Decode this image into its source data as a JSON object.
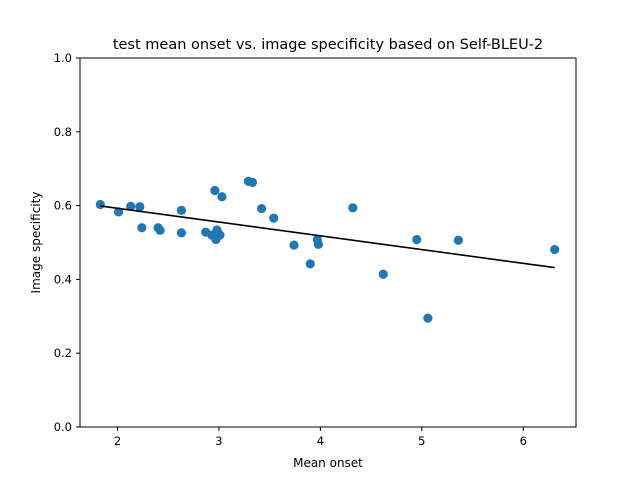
{
  "chart_data": {
    "type": "scatter",
    "title": "test mean onset vs. image specificity based on Self-BLEU-2",
    "xlabel": "Mean onset",
    "ylabel": "Image specificity",
    "xlim": [
      1.63,
      6.52
    ],
    "ylim": [
      0.0,
      1.0
    ],
    "xticks": [
      2,
      3,
      4,
      5,
      6
    ],
    "xtick_labels": [
      "2",
      "3",
      "4",
      "5",
      "6"
    ],
    "yticks": [
      0.0,
      0.2,
      0.4,
      0.6,
      0.8,
      1.0
    ],
    "ytick_labels": [
      "0.0",
      "0.2",
      "0.4",
      "0.6",
      "0.8",
      "1.0"
    ],
    "grid": false,
    "point_color": "#1f77b4",
    "fit_color": "#000000",
    "series": [
      {
        "type": "scatter",
        "x": [
          1.83,
          2.01,
          2.13,
          2.22,
          2.24,
          2.4,
          2.42,
          2.63,
          2.63,
          2.87,
          2.93,
          2.96,
          2.97,
          2.98,
          2.99,
          3.01,
          3.03,
          3.29,
          3.33,
          3.42,
          3.54,
          3.74,
          3.9,
          3.97,
          3.98,
          4.32,
          4.62,
          4.95,
          5.06,
          5.36,
          6.31
        ],
        "y": [
          0.603,
          0.583,
          0.598,
          0.597,
          0.54,
          0.54,
          0.533,
          0.587,
          0.526,
          0.528,
          0.52,
          0.641,
          0.508,
          0.534,
          0.527,
          0.52,
          0.624,
          0.666,
          0.663,
          0.592,
          0.566,
          0.493,
          0.442,
          0.508,
          0.495,
          0.594,
          0.414,
          0.508,
          0.295,
          0.506,
          0.481
        ]
      },
      {
        "type": "line",
        "x": [
          1.83,
          6.31
        ],
        "y": [
          0.599,
          0.432
        ]
      }
    ]
  }
}
